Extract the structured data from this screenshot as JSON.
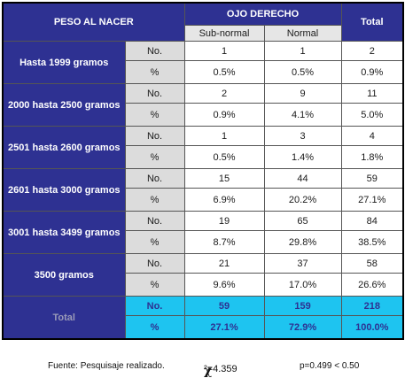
{
  "header": {
    "col_weight": "PESO AL NACER",
    "col_eye": "OJO DERECHO",
    "col_total": "Total",
    "sub_subnormal": "Sub-normal",
    "sub_normal": "Normal"
  },
  "labels": {
    "count": "No.",
    "pct": "%"
  },
  "groups": [
    {
      "name": "Hasta 1999 gramos",
      "no": [
        "1",
        "1",
        "2"
      ],
      "pct": [
        "0.5%",
        "0.5%",
        "0.9%"
      ]
    },
    {
      "name": "2000 hasta 2500 gramos",
      "no": [
        "2",
        "9",
        "11"
      ],
      "pct": [
        "0.9%",
        "4.1%",
        "5.0%"
      ]
    },
    {
      "name": "2501 hasta 2600 gramos",
      "no": [
        "1",
        "3",
        "4"
      ],
      "pct": [
        "0.5%",
        "1.4%",
        "1.8%"
      ]
    },
    {
      "name": "2601 hasta 3000 gramos",
      "no": [
        "15",
        "44",
        "59"
      ],
      "pct": [
        "6.9%",
        "20.2%",
        "27.1%"
      ]
    },
    {
      "name": "3001 hasta 3499 gramos",
      "no": [
        "19",
        "65",
        "84"
      ],
      "pct": [
        "8.7%",
        "29.8%",
        "38.5%"
      ]
    },
    {
      "name": "3500 gramos",
      "no": [
        "21",
        "37",
        "58"
      ],
      "pct": [
        "9.6%",
        "17.0%",
        "26.6%"
      ]
    }
  ],
  "total": {
    "name": "Total",
    "no": [
      "59",
      "159",
      "218"
    ],
    "pct": [
      "27.1%",
      "72.9%",
      "100.0%"
    ]
  },
  "footer": {
    "source": "Fuente: Pesquisaje realizado.",
    "chi_symbol": "χ",
    "chi_value": "²=4.359",
    "p_value": "p=0.499 < 0.50"
  },
  "colors": {
    "header_blue": "#2e3192",
    "total_cyan": "#1ec4f0",
    "label_gray": "#dcdcdc"
  }
}
